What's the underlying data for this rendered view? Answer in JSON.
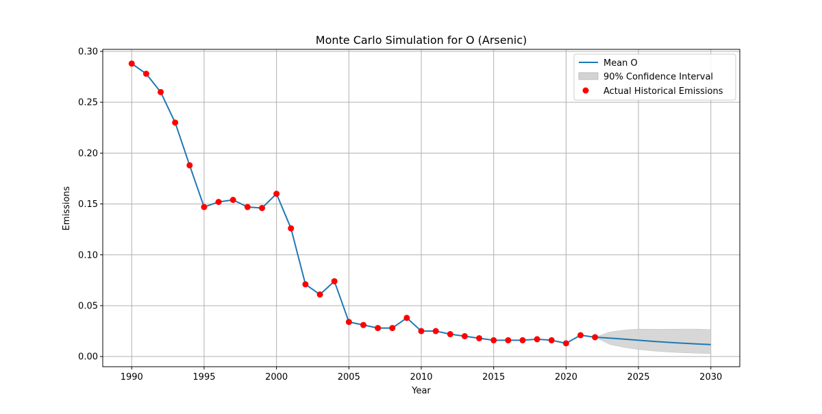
{
  "chart_data": {
    "type": "line",
    "title": "Monte Carlo Simulation for O (Arsenic)",
    "xlabel": "Year",
    "ylabel": "Emissions",
    "xlim": [
      1988,
      2032
    ],
    "ylim": [
      -0.01,
      0.302
    ],
    "xticks": [
      1990,
      1995,
      2000,
      2005,
      2010,
      2015,
      2020,
      2025,
      2030
    ],
    "xtick_labels": [
      "1990",
      "1995",
      "2000",
      "2005",
      "2010",
      "2015",
      "2020",
      "2025",
      "2030"
    ],
    "yticks": [
      0.0,
      0.05,
      0.1,
      0.15,
      0.2,
      0.25,
      0.3
    ],
    "ytick_labels": [
      "0.00",
      "0.05",
      "0.10",
      "0.15",
      "0.20",
      "0.25",
      "0.30"
    ],
    "grid": true,
    "legend_position": "top-right",
    "colors": {
      "mean_line": "#1f77b4",
      "historical_points": "#ff0000",
      "confidence_fill": "#d3d3d3",
      "confidence_edge": "#bdbdbd"
    },
    "series": [
      {
        "name": "Mean O",
        "kind": "line",
        "x": [
          1990,
          1991,
          1992,
          1993,
          1994,
          1995,
          1996,
          1997,
          1998,
          1999,
          2000,
          2001,
          2002,
          2003,
          2004,
          2005,
          2006,
          2007,
          2008,
          2009,
          2010,
          2011,
          2012,
          2013,
          2014,
          2015,
          2016,
          2017,
          2018,
          2019,
          2020,
          2021,
          2022,
          2023,
          2024,
          2025,
          2026,
          2027,
          2028,
          2029,
          2030
        ],
        "y": [
          0.288,
          0.278,
          0.26,
          0.23,
          0.188,
          0.147,
          0.152,
          0.154,
          0.147,
          0.146,
          0.16,
          0.126,
          0.071,
          0.061,
          0.074,
          0.034,
          0.031,
          0.028,
          0.028,
          0.038,
          0.025,
          0.025,
          0.022,
          0.02,
          0.018,
          0.016,
          0.016,
          0.016,
          0.017,
          0.016,
          0.013,
          0.021,
          0.019,
          0.0181,
          0.0171,
          0.016,
          0.0149,
          0.014,
          0.0132,
          0.0124,
          0.0117
        ]
      },
      {
        "name": "90% Confidence Interval",
        "kind": "band",
        "x": [
          2022,
          2023,
          2024,
          2025,
          2026,
          2027,
          2028,
          2029,
          2030
        ],
        "lower": [
          0.019,
          0.012,
          0.009,
          0.007,
          0.0055,
          0.0045,
          0.0038,
          0.0033,
          0.003
        ],
        "upper": [
          0.019,
          0.024,
          0.026,
          0.027,
          0.0268,
          0.0268,
          0.027,
          0.027,
          0.0265
        ]
      },
      {
        "name": "Actual Historical Emissions",
        "kind": "scatter",
        "x": [
          1990,
          1991,
          1992,
          1993,
          1994,
          1995,
          1996,
          1997,
          1998,
          1999,
          2000,
          2001,
          2002,
          2003,
          2004,
          2005,
          2006,
          2007,
          2008,
          2009,
          2010,
          2011,
          2012,
          2013,
          2014,
          2015,
          2016,
          2017,
          2018,
          2019,
          2020,
          2021,
          2022
        ],
        "y": [
          0.288,
          0.278,
          0.26,
          0.23,
          0.188,
          0.147,
          0.152,
          0.154,
          0.147,
          0.146,
          0.16,
          0.126,
          0.071,
          0.061,
          0.074,
          0.034,
          0.031,
          0.028,
          0.028,
          0.038,
          0.025,
          0.025,
          0.022,
          0.02,
          0.018,
          0.016,
          0.016,
          0.016,
          0.017,
          0.016,
          0.013,
          0.021,
          0.019
        ]
      }
    ]
  }
}
